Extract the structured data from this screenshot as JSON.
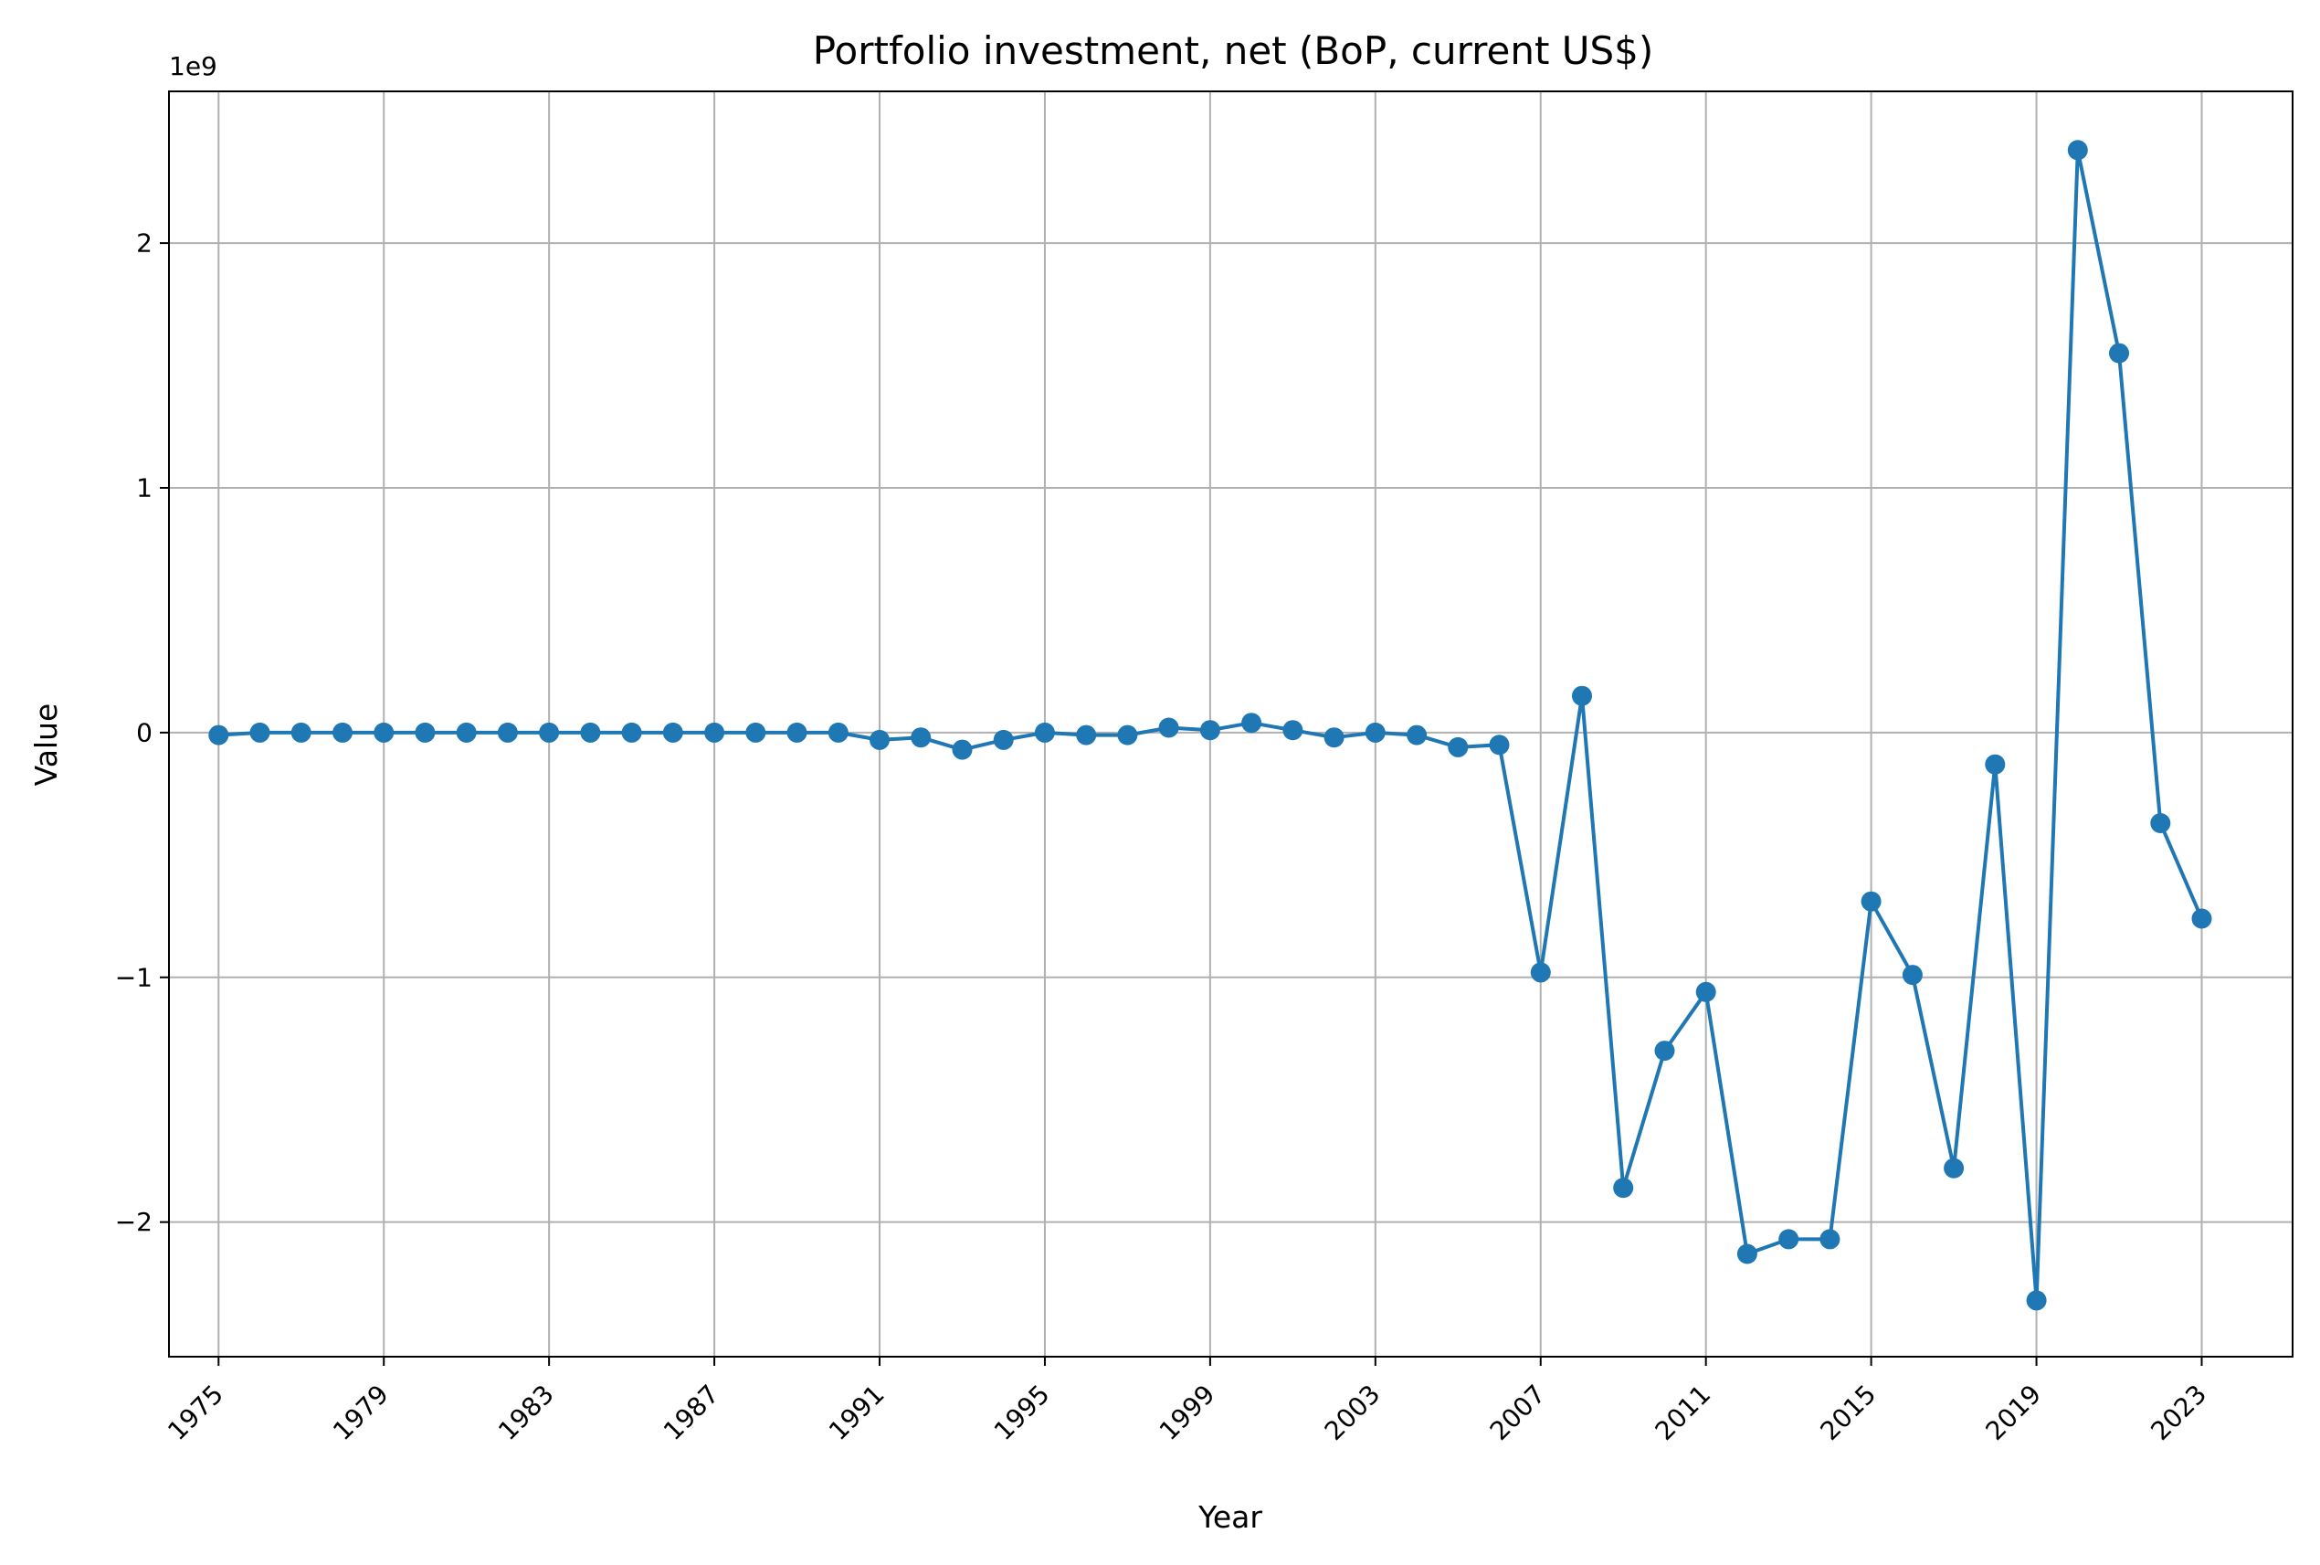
{
  "chart_data": {
    "type": "line",
    "title": "Portfolio investment, net (BoP, current US$)",
    "xlabel": "Year",
    "ylabel": "Value",
    "y_offset_label": "1e9",
    "color": "#1f77b4",
    "grid": true,
    "xlim": [
      1973.8,
      2025.2
    ],
    "ylim": [
      -2.55,
      2.62
    ],
    "x_ticks": [
      1975,
      1979,
      1983,
      1987,
      1991,
      1995,
      1999,
      2003,
      2007,
      2011,
      2015,
      2019,
      2023
    ],
    "x_tick_labels": [
      "1975",
      "1979",
      "1983",
      "1987",
      "1991",
      "1995",
      "1999",
      "2003",
      "2007",
      "2011",
      "2015",
      "2019",
      "2023"
    ],
    "y_ticks": [
      -2,
      -1,
      0,
      1,
      2
    ],
    "y_tick_labels": [
      "−2",
      "−1",
      "0",
      "1",
      "2"
    ],
    "x": [
      1975,
      1976,
      1977,
      1978,
      1979,
      1980,
      1981,
      1982,
      1983,
      1984,
      1985,
      1986,
      1987,
      1988,
      1989,
      1990,
      1991,
      1992,
      1993,
      1994,
      1995,
      1996,
      1997,
      1998,
      1999,
      2000,
      2001,
      2002,
      2003,
      2004,
      2005,
      2006,
      2007,
      2008,
      2009,
      2010,
      2011,
      2012,
      2013,
      2014,
      2015,
      2016,
      2017,
      2018,
      2019,
      2020,
      2021,
      2022,
      2023
    ],
    "series": [
      {
        "values": [
          -0.01,
          0.0,
          0.0,
          0.0,
          0.0,
          0.0,
          0.0,
          0.0,
          0.0,
          0.0,
          0.0,
          0.0,
          0.0,
          0.0,
          0.0,
          0.0,
          -0.03,
          -0.02,
          -0.07,
          -0.03,
          0.0,
          -0.01,
          -0.01,
          0.02,
          0.01,
          0.04,
          0.01,
          -0.02,
          0.0,
          -0.01,
          -0.06,
          -0.05,
          -0.98,
          0.15,
          -1.86,
          -1.3,
          -1.06,
          -2.13,
          -2.07,
          -2.07,
          -0.69,
          -0.99,
          -1.78,
          -0.13,
          -2.32,
          2.38,
          1.55,
          -0.37,
          -0.76
        ]
      }
    ]
  }
}
